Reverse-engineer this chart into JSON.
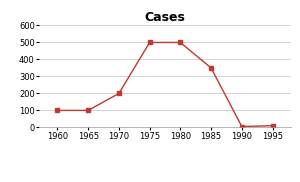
{
  "title": "Cases",
  "x": [
    1960,
    1965,
    1970,
    1975,
    1980,
    1985,
    1990,
    1995
  ],
  "y": [
    100,
    100,
    200,
    500,
    500,
    350,
    5,
    10
  ],
  "line_color": "#c0392b",
  "marker": "s",
  "marker_size": 3,
  "xlim": [
    1957,
    1998
  ],
  "ylim": [
    0,
    600
  ],
  "yticks": [
    0,
    100,
    200,
    300,
    400,
    500,
    600
  ],
  "xticks": [
    1960,
    1965,
    1970,
    1975,
    1980,
    1985,
    1990,
    1995
  ],
  "title_fontsize": 9,
  "legend_fontsize": 5.5,
  "tick_fontsize": 6,
  "grid_color": "#cccccc",
  "background_color": "#ffffff"
}
